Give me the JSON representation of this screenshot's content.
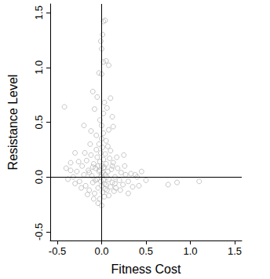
{
  "chart_data": {
    "type": "scatter",
    "x_label": "Fitness Cost",
    "y_label": "Resistance Level",
    "color": "#b8b8b8",
    "marker": "circle_open",
    "grid": false,
    "xlim": [
      -0.58,
      1.58
    ],
    "ylim": [
      -0.58,
      1.58
    ],
    "xticks": [
      -0.5,
      {
        "value": 0,
        "label": "0.0"
      },
      0.5,
      {
        "value": 1,
        "label": "1.0"
      },
      1.5
    ],
    "yticks": [
      -0.5,
      {
        "value": 0,
        "label": "0.0"
      },
      0.5,
      {
        "value": 1,
        "label": "1.0"
      },
      1.5
    ],
    "hlines": [
      0
    ],
    "vlines": [
      0
    ],
    "x": [
      -0.28,
      -0.25,
      -0.22,
      -0.2,
      -0.18,
      -0.17,
      -0.15,
      -0.14,
      -0.12,
      -0.11,
      -0.1,
      -0.09,
      -0.08,
      -0.07,
      -0.06,
      -0.05,
      -0.05,
      -0.04,
      -0.03,
      -0.03,
      -0.02,
      -0.02,
      -0.01,
      -0.01,
      0.0,
      0.0,
      0.0,
      0.01,
      0.01,
      0.01,
      0.02,
      0.02,
      0.03,
      0.03,
      0.04,
      0.04,
      0.05,
      0.05,
      0.06,
      0.07,
      0.07,
      0.08,
      0.09,
      0.1,
      0.11,
      0.12,
      0.13,
      0.15,
      0.16,
      0.18,
      0.2,
      0.22,
      0.24,
      0.27,
      0.3,
      0.33,
      -0.32,
      -0.3,
      -0.26,
      -0.23,
      -0.19,
      -0.16,
      -0.13,
      -0.09,
      -0.06,
      -0.04,
      0.02,
      0.0,
      0.05,
      0.08,
      0.1,
      0.14,
      0.17,
      0.21,
      0.26,
      0.35,
      0.4,
      -0.35,
      -0.02,
      0.03,
      -0.07,
      0.06,
      0.0,
      -0.01,
      0.02,
      -0.04,
      0.04,
      -0.1,
      0.12,
      -0.14,
      0.15,
      -0.42,
      0.02,
      0.04,
      0.01,
      -0.01,
      0.0,
      0.02,
      0.05,
      0.08,
      -0.03,
      0.0,
      -0.1,
      0.1,
      -0.05,
      0.03,
      0.06,
      -0.08,
      0.02,
      0.12,
      -0.02,
      0.0,
      -0.2,
      0.13,
      0.08,
      -0.12,
      1.1,
      0.85,
      0.75,
      0.5,
      0.45,
      0.42,
      0.38,
      -0.4,
      -0.38,
      -0.35,
      -0.3,
      0.3,
      0.25
    ],
    "y": [
      0.05,
      -0.04,
      0.1,
      0.02,
      -0.08,
      0.15,
      0.06,
      -0.12,
      0.2,
      0.01,
      -0.05,
      0.12,
      -0.15,
      0.08,
      0.25,
      -0.02,
      0.18,
      -0.1,
      0.05,
      0.3,
      -0.2,
      0.14,
      0.0,
      0.22,
      -0.08,
      0.1,
      0.35,
      -0.14,
      0.04,
      0.27,
      -0.03,
      0.16,
      -0.18,
      0.09,
      0.02,
      0.21,
      -0.07,
      0.12,
      -0.12,
      0.05,
      0.28,
      -0.02,
      0.17,
      -0.09,
      0.07,
      -0.05,
      0.13,
      0.0,
      -0.1,
      0.08,
      -0.03,
      0.04,
      -0.07,
      0.02,
      -0.04,
      0.03,
      0.0,
      -0.06,
      0.14,
      -0.1,
      0.22,
      -0.16,
      0.3,
      -0.2,
      0.38,
      -0.24,
      0.4,
      -0.26,
      0.33,
      -0.17,
      0.24,
      -0.13,
      0.18,
      -0.12,
      0.1,
      -0.09,
      0.0,
      0.06,
      0.06,
      -0.06,
      -0.03,
      0.0,
      0.02,
      -0.04,
      0.08,
      0.1,
      -0.11,
      0.09,
      0.1,
      0.04,
      -0.06,
      0.64,
      1.42,
      1.43,
      1.3,
      1.24,
      1.17,
      1.05,
      1.06,
      1.02,
      0.95,
      0.94,
      0.78,
      0.72,
      0.73,
      0.68,
      0.63,
      0.62,
      0.58,
      0.55,
      0.52,
      0.47,
      0.47,
      0.46,
      0.43,
      0.42,
      -0.04,
      -0.05,
      -0.07,
      -0.03,
      0.05,
      -0.08,
      0.02,
      0.08,
      -0.02,
      0.13,
      0.22,
      -0.15,
      0.2
    ]
  }
}
